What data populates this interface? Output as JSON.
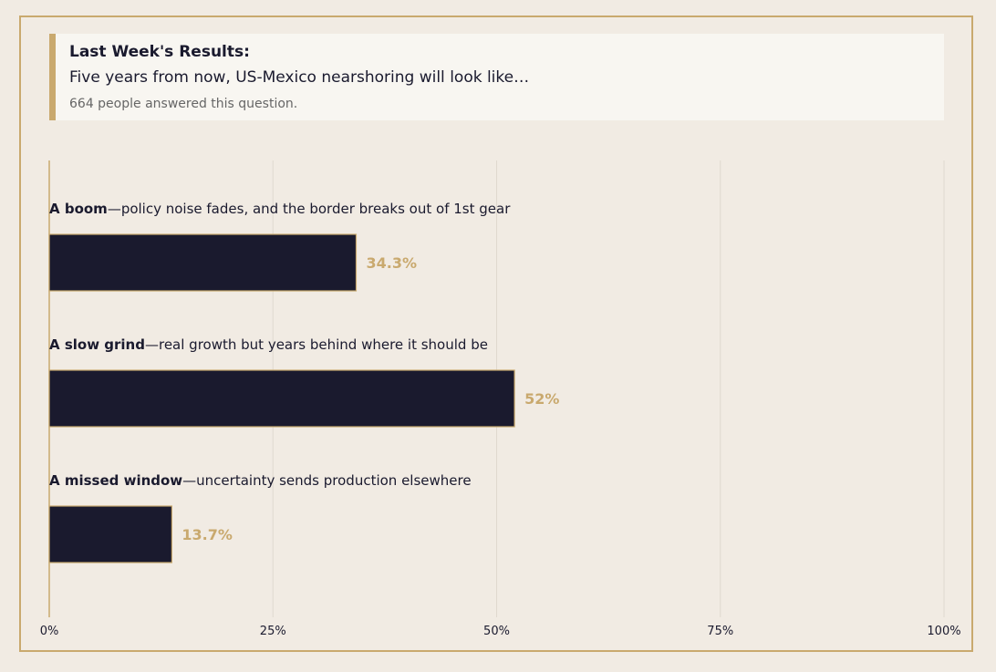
{
  "header": {
    "title": "Last Week's Results:",
    "question": "Five years from now, US-Mexico nearshoring will look like…",
    "note": "664 people answered this question."
  },
  "colors": {
    "background": "#f1ebe3",
    "accent": "#c9a96e",
    "bar": "#1a1a2e",
    "text": "#1a1a2e"
  },
  "chart_data": {
    "type": "bar",
    "orientation": "horizontal",
    "categories": [
      {
        "lead": "A boom",
        "rest": "—policy noise fades, and the border breaks out of 1st gear"
      },
      {
        "lead": "A slow grind",
        "rest": "—real growth but years behind where it should be"
      },
      {
        "lead": "A missed window",
        "rest": "—uncertainty sends production elsewhere"
      }
    ],
    "values": [
      34.3,
      52,
      13.7
    ],
    "value_labels": [
      "34.3%",
      "52%",
      "13.7%"
    ],
    "xlim": [
      0,
      100
    ],
    "xticks": [
      0,
      25,
      50,
      75,
      100
    ],
    "xtick_labels": [
      "0%",
      "25%",
      "50%",
      "75%",
      "100%"
    ],
    "grid": true
  }
}
